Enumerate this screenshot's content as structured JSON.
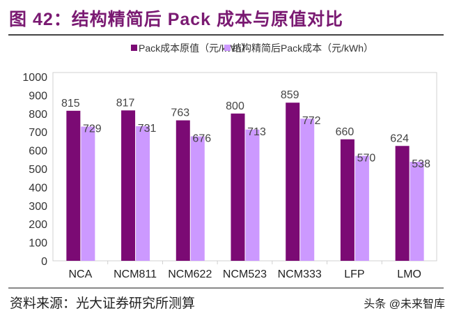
{
  "title": "图 42：结构精简后 Pack 成本与原值对比",
  "source": "资料来源：光大证券研究所测算",
  "watermark": "头条 @未来智库",
  "chart_data": {
    "type": "bar",
    "categories": [
      "NCA",
      "NCM811",
      "NCM622",
      "NCM523",
      "NCM333",
      "LFP",
      "LMO"
    ],
    "series": [
      {
        "name": "Pack成本原值（元/kWh）",
        "color": "#7b0a74",
        "values": [
          815,
          817,
          763,
          800,
          859,
          660,
          624
        ]
      },
      {
        "name": "结构精简后Pack成本（元/kWh）",
        "color": "#cc99ff",
        "values": [
          729,
          731,
          676,
          713,
          772,
          570,
          538
        ]
      }
    ],
    "ylim": [
      0,
      1000
    ],
    "yticks": [
      0,
      100,
      200,
      300,
      400,
      500,
      600,
      700,
      800,
      900,
      1000
    ],
    "legend": "top",
    "grid": false
  }
}
